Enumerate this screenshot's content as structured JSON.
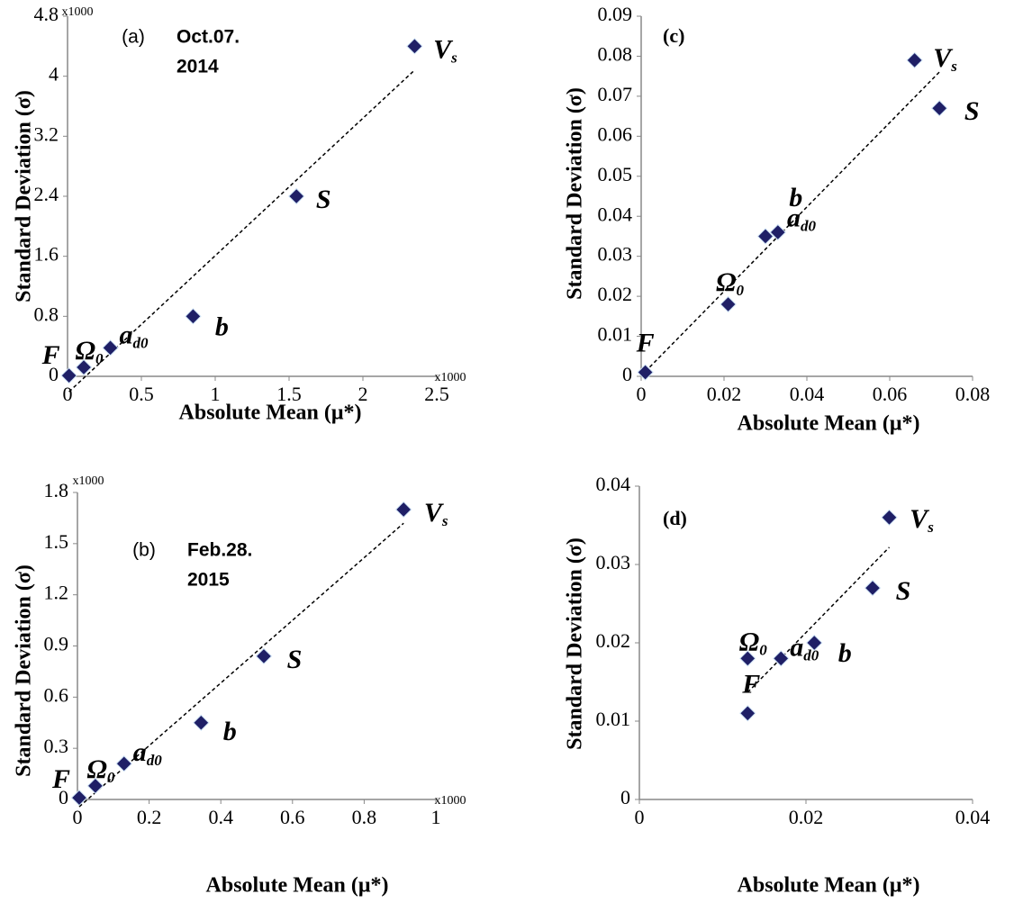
{
  "chart_data": [
    {
      "type": "scatter",
      "panel_label": "(a)",
      "annotation": [
        "Oct.07.",
        "2014"
      ],
      "xlabel": "Absolute Mean (μ*)",
      "ylabel": "Standard Deviation (σ)",
      "x_unit_label": "x1000",
      "y_unit_label": "x1000",
      "xlim": [
        0,
        2.5
      ],
      "ylim": [
        0,
        4.8
      ],
      "xticks": [
        0,
        0.5,
        1,
        1.5,
        2,
        2.5
      ],
      "yticks": [
        0,
        0.8,
        1.6,
        2.4,
        3.2,
        4,
        4.8
      ],
      "x": [
        2.35,
        1.55,
        0.85,
        0.29,
        0.11,
        0.01
      ],
      "y": [
        4.4,
        2.4,
        0.8,
        0.38,
        0.12,
        0.01
      ],
      "labels": [
        {
          "text": "V",
          "sub": "s"
        },
        {
          "text": "S"
        },
        {
          "text": "b"
        },
        {
          "text": "a",
          "sub": "d0"
        },
        {
          "text": "Ω",
          "sub": "0"
        },
        {
          "text": "F"
        }
      ],
      "color": "#1f1f66",
      "trendline": true
    },
    {
      "type": "scatter",
      "panel_label": "(b)",
      "annotation": [
        "Feb.28.",
        "2015"
      ],
      "xlabel": "Absolute Mean (μ*)",
      "ylabel": "Standard Deviation (σ)",
      "x_unit_label": "x1000",
      "y_unit_label": "x1000",
      "xlim": [
        0,
        1
      ],
      "ylim": [
        0,
        1.8
      ],
      "xticks": [
        0,
        0.2,
        0.4,
        0.6,
        0.8,
        1
      ],
      "yticks": [
        0,
        0.3,
        0.6,
        0.9,
        1.2,
        1.5,
        1.8
      ],
      "x": [
        0.91,
        0.52,
        0.345,
        0.13,
        0.05,
        0.005
      ],
      "y": [
        1.7,
        0.84,
        0.45,
        0.21,
        0.08,
        0.01
      ],
      "labels": [
        {
          "text": "V",
          "sub": "s"
        },
        {
          "text": "S"
        },
        {
          "text": "b"
        },
        {
          "text": "a",
          "sub": "d0"
        },
        {
          "text": "Ω",
          "sub": "0"
        },
        {
          "text": "F"
        }
      ],
      "color": "#1f1f66",
      "trendline": true
    },
    {
      "type": "scatter",
      "panel_label": "(c)",
      "xlabel": "Absolute Mean (μ*)",
      "ylabel": "Standard Deviation (σ)",
      "xlim": [
        0,
        0.08
      ],
      "ylim": [
        0,
        0.09
      ],
      "xticks": [
        0,
        0.02,
        0.04,
        0.06,
        0.08
      ],
      "yticks": [
        0,
        0.01,
        0.02,
        0.03,
        0.04,
        0.05,
        0.06,
        0.07,
        0.08,
        0.09
      ],
      "x": [
        0.066,
        0.072,
        0.033,
        0.03,
        0.021,
        0.001
      ],
      "y": [
        0.079,
        0.067,
        0.036,
        0.035,
        0.018,
        0.001
      ],
      "labels": [
        {
          "text": "V",
          "sub": "s"
        },
        {
          "text": "S"
        },
        {
          "text": "b"
        },
        {
          "text": "a",
          "sub": "d0"
        },
        {
          "text": "Ω",
          "sub": "0"
        },
        {
          "text": "F"
        }
      ],
      "color": "#1f1f66",
      "trendline": true
    },
    {
      "type": "scatter",
      "panel_label": "(d)",
      "xlabel": "Absolute Mean (μ*)",
      "ylabel": "Standard Deviation (σ)",
      "xlim": [
        0,
        0.04
      ],
      "ylim": [
        0,
        0.04
      ],
      "xticks": [
        0,
        0.02,
        0.04
      ],
      "yticks": [
        0,
        0.01,
        0.02,
        0.03,
        0.04
      ],
      "x": [
        0.03,
        0.028,
        0.021,
        0.017,
        0.013,
        0.013
      ],
      "y": [
        0.036,
        0.027,
        0.02,
        0.018,
        0.018,
        0.011
      ],
      "labels": [
        {
          "text": "V",
          "sub": "s"
        },
        {
          "text": "S"
        },
        {
          "text": "b"
        },
        {
          "text": "a",
          "sub": "d0"
        },
        {
          "text": "Ω",
          "sub": "0"
        },
        {
          "text": "F"
        }
      ],
      "color": "#1f1f66",
      "trendline": true
    }
  ]
}
